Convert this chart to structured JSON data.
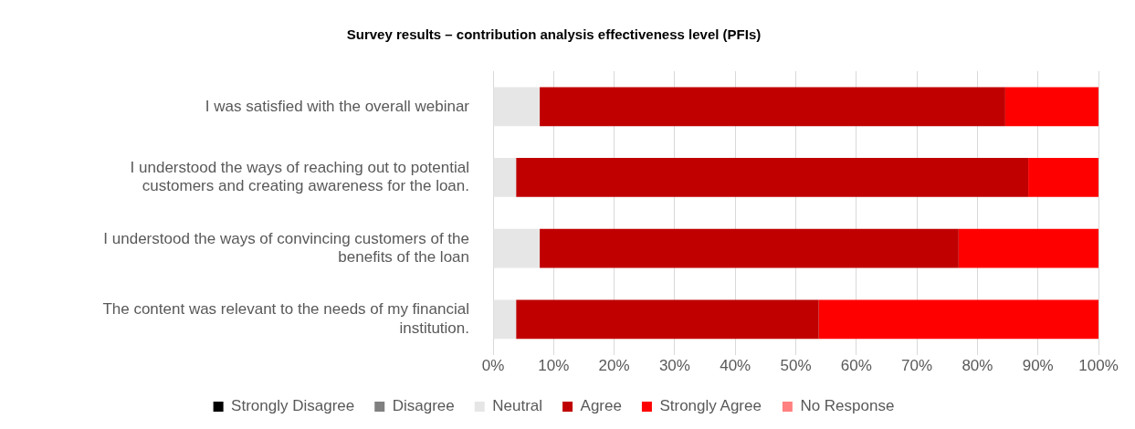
{
  "chart_data": {
    "type": "bar",
    "orientation": "horizontal",
    "stacked": true,
    "title": "Survey results – contribution analysis effectiveness level (PFIs)",
    "categories": [
      "I was satisfied with the overall webinar",
      "I understood the ways of reaching out to potential customers and creating awareness for the loan.",
      "I understood the ways of convincing customers of the benefits of the loan",
      "The content was relevant to the needs of my financial institution."
    ],
    "series": [
      {
        "name": "Strongly Disagree",
        "color": "#000000",
        "values": [
          0,
          0,
          0,
          0
        ]
      },
      {
        "name": "Disagree",
        "color": "#808080",
        "values": [
          0,
          0,
          0,
          0
        ]
      },
      {
        "name": "Neutral",
        "color": "#e6e6e6",
        "values": [
          7.7,
          3.8,
          7.7,
          3.8
        ]
      },
      {
        "name": "Agree",
        "color": "#c00000",
        "values": [
          76.9,
          84.6,
          69.2,
          50
        ]
      },
      {
        "name": "Strongly Agree",
        "color": "#ff0000",
        "values": [
          15.4,
          11.6,
          23.1,
          46.2
        ]
      },
      {
        "name": "No Response",
        "color": "#ff8080",
        "values": [
          0,
          0,
          0,
          0
        ]
      }
    ],
    "xlim": [
      0,
      100
    ],
    "xticks": [
      {
        "value": 0,
        "label": "0%"
      },
      {
        "value": 10,
        "label": "10%"
      },
      {
        "value": 20,
        "label": "20%"
      },
      {
        "value": 30,
        "label": "30%"
      },
      {
        "value": 40,
        "label": "40%"
      },
      {
        "value": 50,
        "label": "50%"
      },
      {
        "value": 60,
        "label": "60%"
      },
      {
        "value": 70,
        "label": "70%"
      },
      {
        "value": 80,
        "label": "80%"
      },
      {
        "value": 90,
        "label": "90%"
      },
      {
        "value": 100,
        "label": "100%"
      }
    ],
    "grid": "x",
    "legend": "bottom"
  }
}
